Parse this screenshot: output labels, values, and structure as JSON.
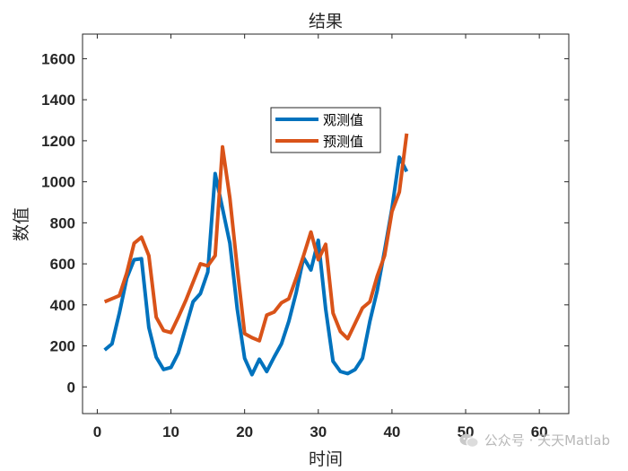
{
  "chart_data": {
    "type": "line",
    "title": "结果",
    "xlabel": "时间",
    "ylabel": "数值",
    "xlim": [
      -2,
      64
    ],
    "ylim": [
      -130,
      1720
    ],
    "xticks": [
      0,
      10,
      20,
      30,
      40,
      50,
      60
    ],
    "yticks": [
      0,
      200,
      400,
      600,
      800,
      1000,
      1200,
      1400,
      1600
    ],
    "grid": false,
    "legend": "upper-center",
    "x": [
      1,
      2,
      3,
      4,
      5,
      6,
      7,
      8,
      9,
      10,
      11,
      12,
      13,
      14,
      15,
      16,
      17,
      18,
      19,
      20,
      21,
      22,
      23,
      24,
      25,
      26,
      27,
      28,
      29,
      30,
      31,
      32,
      33,
      34,
      35,
      36,
      37,
      38,
      39,
      40,
      41,
      42
    ],
    "series": [
      {
        "name": "观测值",
        "color": "#0072BD",
        "values": [
          180,
          210,
          360,
          530,
          620,
          625,
          290,
          145,
          85,
          95,
          165,
          290,
          415,
          455,
          560,
          1040,
          870,
          700,
          380,
          140,
          60,
          135,
          75,
          145,
          210,
          320,
          460,
          630,
          570,
          715,
          380,
          125,
          75,
          65,
          85,
          140,
          320,
          470,
          665,
          870,
          1120,
          1050
        ]
      },
      {
        "name": "预测值",
        "color": "#D95319",
        "values": [
          415,
          430,
          445,
          555,
          700,
          730,
          640,
          340,
          275,
          265,
          340,
          420,
          510,
          600,
          590,
          640,
          1170,
          920,
          580,
          260,
          240,
          225,
          350,
          365,
          410,
          430,
          530,
          640,
          755,
          620,
          695,
          360,
          270,
          235,
          310,
          385,
          415,
          540,
          640,
          855,
          950,
          1235
        ]
      }
    ]
  },
  "watermark": {
    "text": "公众号 · 天天Matlab",
    "icon": "wechat-icon"
  }
}
